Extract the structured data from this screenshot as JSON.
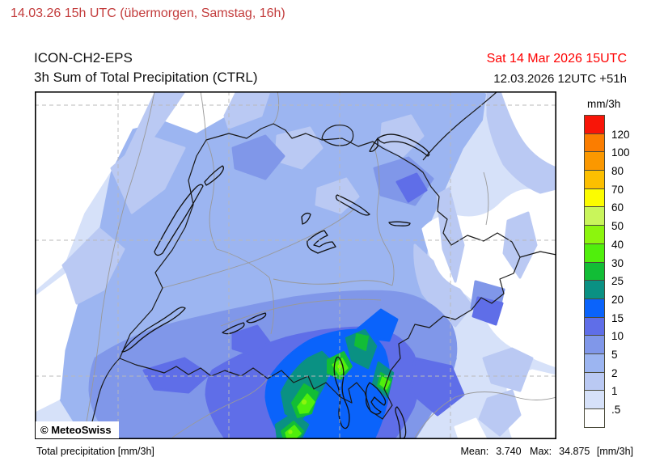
{
  "title_bar": {
    "text": "14.03.26 15h UTC (übermorgen, Samstag, 16h)",
    "color": "#c33c3c"
  },
  "header": {
    "model": "ICON-CH2-EPS",
    "product": "3h Sum of Total Precipitation (CTRL)",
    "valid_time": "Sat 14 Mar 2026 15UTC",
    "valid_time_color": "#fe0000",
    "run_info": "12.03.2026 12UTC +51h"
  },
  "map": {
    "copyright": "© MeteoSwiss",
    "region": "Switzerland"
  },
  "legend": {
    "unit": "mm/3h",
    "entries": [
      {
        "label": "120",
        "color": "#f81508"
      },
      {
        "label": "100",
        "color": "#fb7d00"
      },
      {
        "label": "80",
        "color": "#fb9800"
      },
      {
        "label": "70",
        "color": "#fcbf00"
      },
      {
        "label": "60",
        "color": "#fcfc00"
      },
      {
        "label": "50",
        "color": "#c9f55b"
      },
      {
        "label": "40",
        "color": "#8cf50d"
      },
      {
        "label": "30",
        "color": "#50ef0c"
      },
      {
        "label": "25",
        "color": "#12bd36"
      },
      {
        "label": "20",
        "color": "#0a9183"
      },
      {
        "label": "15",
        "color": "#0a63fb"
      },
      {
        "label": "10",
        "color": "#5f6ee8"
      },
      {
        "label": "5",
        "color": "#8097e9"
      },
      {
        "label": "2",
        "color": "#9cb5f1"
      },
      {
        "label": "1",
        "color": "#bac9f3"
      },
      {
        "label": ".5",
        "color": "#d6e1f9"
      },
      {
        "label": "",
        "color": "#ffffff"
      }
    ]
  },
  "footer": {
    "left": "Total precipitation [mm/3h]",
    "mean_label": "Mean:",
    "mean_value": "3.740",
    "max_label": "Max:",
    "max_value": "34.875",
    "unit": "[mm/3h]"
  }
}
